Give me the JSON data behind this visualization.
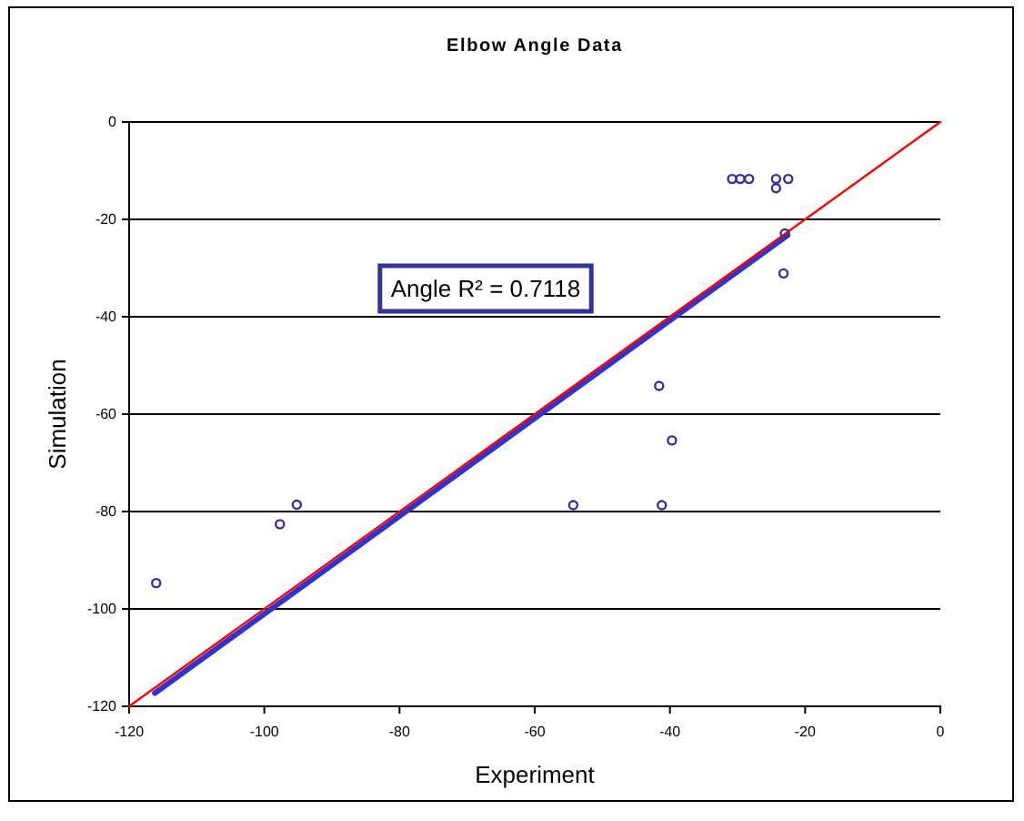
{
  "chart_data": {
    "type": "scatter",
    "title": "Elbow Angle Data",
    "xlabel": "Experiment",
    "ylabel": "Simulation",
    "annotations": [
      "Angle R² = 0.7118"
    ],
    "xlim": [
      -120,
      0
    ],
    "xticks": [
      -120,
      -100,
      -80,
      -60,
      -40,
      -20,
      0
    ],
    "ylim": [
      -120,
      0
    ],
    "yticks": [
      -120,
      -100,
      -80,
      -60,
      -40,
      -20,
      0
    ],
    "grid": "y",
    "series": [
      {
        "type": "line",
        "marker": "none",
        "color": "#3333cc",
        "x": [
          -116.2,
          -22.6
        ],
        "values": [
          -117.3,
          -23.3
        ]
      },
      {
        "type": "line",
        "marker": "none",
        "color": "#ff0000",
        "x": [
          -120,
          0
        ],
        "values": [
          -120,
          0
        ]
      },
      {
        "marker": "circle",
        "color": "#333399",
        "x": [
          -116,
          -97.7,
          -95.2,
          -54.3,
          -41.2,
          -41.6,
          -39.7,
          -30.8,
          -29.6,
          -28.3,
          -24.3,
          -24.3,
          -22.5,
          -23,
          -23.2
        ],
        "values": [
          -94.7,
          -82.6,
          -78.6,
          -78.7,
          -78.7,
          -54.2,
          -65.4,
          -11.7,
          -11.7,
          -11.7,
          -11.7,
          -13.6,
          -11.7,
          -22.9,
          -31.1
        ]
      }
    ]
  }
}
